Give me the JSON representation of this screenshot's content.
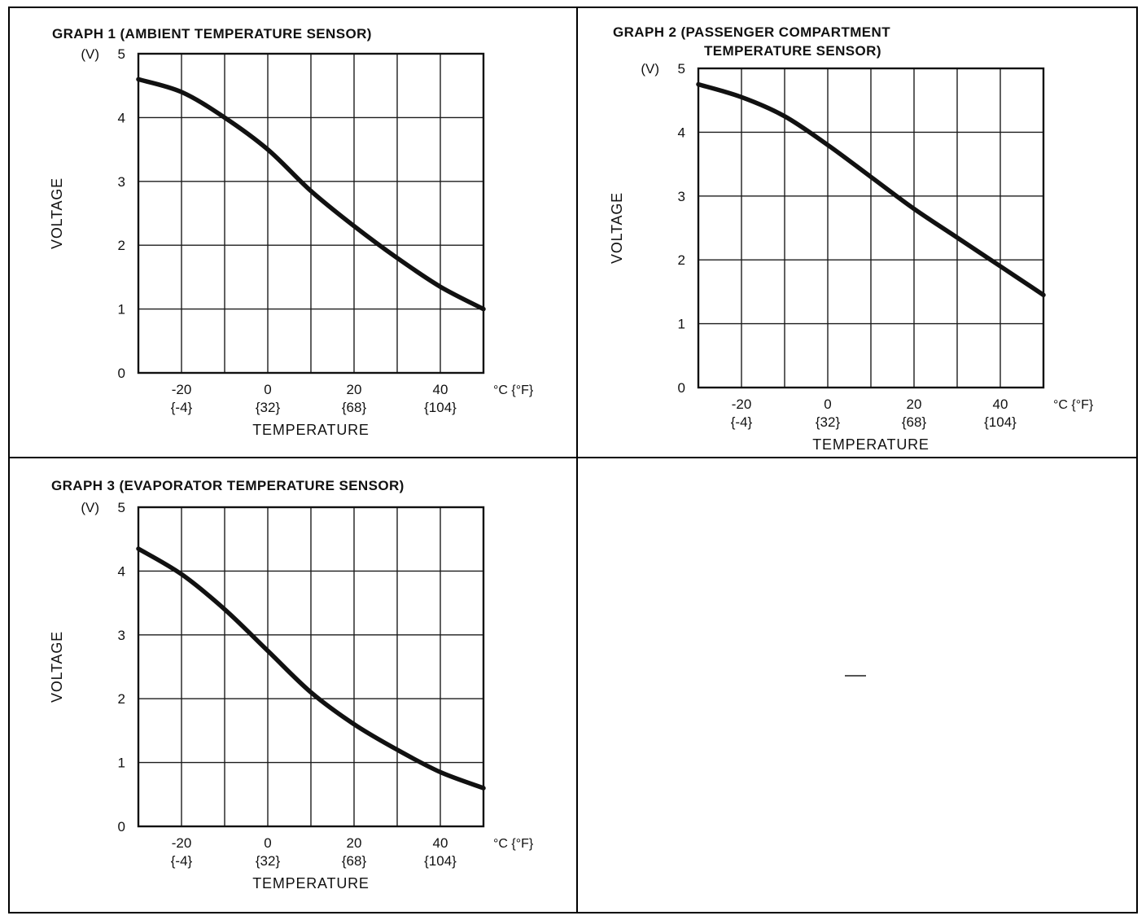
{
  "page": {
    "kind": "scanned technical manual page with sensor characteristic graphs"
  },
  "chart_data": [
    {
      "type": "line",
      "title": "GRAPH 1 (AMBIENT TEMPERATURE SENSOR)",
      "title_lines": [
        "GRAPH 1 (AMBIENT TEMPERATURE SENSOR)"
      ],
      "ylabel": "VOLTAGE",
      "y_unit_label": "(V)",
      "xlabel": "TEMPERATURE",
      "x_unit_label": "°C {°F}",
      "xlim": [
        -30,
        50
      ],
      "ylim": [
        0,
        5
      ],
      "x_grid_step": 10,
      "y_grid_step": 1,
      "grid": true,
      "y_ticks": [
        "0",
        "1",
        "2",
        "3",
        "4",
        "5"
      ],
      "x_ticks": [
        {
          "c": -20,
          "label_c": "-20",
          "label_f": "{-4}"
        },
        {
          "c": 0,
          "label_c": "0",
          "label_f": "{32}"
        },
        {
          "c": 20,
          "label_c": "20",
          "label_f": "{68}"
        },
        {
          "c": 40,
          "label_c": "40",
          "label_f": "{104}"
        }
      ],
      "x": [
        -30,
        -20,
        -10,
        0,
        10,
        20,
        30,
        40,
        50
      ],
      "values": [
        4.6,
        4.4,
        4.0,
        3.5,
        2.85,
        2.3,
        1.8,
        1.35,
        1.0
      ]
    },
    {
      "type": "line",
      "title": "GRAPH 2 (PASSENGER COMPARTMENT TEMPERATURE SENSOR)",
      "title_lines": [
        "GRAPH 2  (PASSENGER COMPARTMENT",
        "TEMPERATURE SENSOR)"
      ],
      "ylabel": "VOLTAGE",
      "y_unit_label": "(V)",
      "xlabel": "TEMPERATURE",
      "x_unit_label": "°C {°F}",
      "xlim": [
        -30,
        50
      ],
      "ylim": [
        0,
        5
      ],
      "x_grid_step": 10,
      "y_grid_step": 1,
      "grid": true,
      "y_ticks": [
        "0",
        "1",
        "2",
        "3",
        "4",
        "5"
      ],
      "x_ticks": [
        {
          "c": -20,
          "label_c": "-20",
          "label_f": "{-4}"
        },
        {
          "c": 0,
          "label_c": "0",
          "label_f": "{32}"
        },
        {
          "c": 20,
          "label_c": "20",
          "label_f": "{68}"
        },
        {
          "c": 40,
          "label_c": "40",
          "label_f": "{104}"
        }
      ],
      "x": [
        -30,
        -20,
        -10,
        0,
        10,
        20,
        30,
        40,
        50
      ],
      "values": [
        4.75,
        4.55,
        4.25,
        3.8,
        3.3,
        2.8,
        2.35,
        1.9,
        1.45
      ]
    },
    {
      "type": "line",
      "title": "GRAPH 3 (EVAPORATOR TEMPERATURE SENSOR)",
      "title_lines": [
        "GRAPH 3 (EVAPORATOR TEMPERATURE SENSOR)"
      ],
      "ylabel": "VOLTAGE",
      "y_unit_label": "(V)",
      "xlabel": "TEMPERATURE",
      "x_unit_label": "°C {°F}",
      "xlim": [
        -30,
        50
      ],
      "ylim": [
        0,
        5
      ],
      "x_grid_step": 10,
      "y_grid_step": 1,
      "grid": true,
      "y_ticks": [
        "0",
        "1",
        "2",
        "3",
        "4",
        "5"
      ],
      "x_ticks": [
        {
          "c": -20,
          "label_c": "-20",
          "label_f": "{-4}"
        },
        {
          "c": 0,
          "label_c": "0",
          "label_f": "{32}"
        },
        {
          "c": 20,
          "label_c": "20",
          "label_f": "{68}"
        },
        {
          "c": 40,
          "label_c": "40",
          "label_f": "{104}"
        }
      ],
      "x": [
        -30,
        -20,
        -10,
        0,
        10,
        20,
        30,
        40,
        50
      ],
      "values": [
        4.35,
        3.95,
        3.4,
        2.75,
        2.1,
        1.6,
        1.2,
        0.85,
        0.6
      ]
    }
  ],
  "colors": {
    "ink": "#111111",
    "grid": "#1c1c1c",
    "paper": "#ffffff"
  }
}
